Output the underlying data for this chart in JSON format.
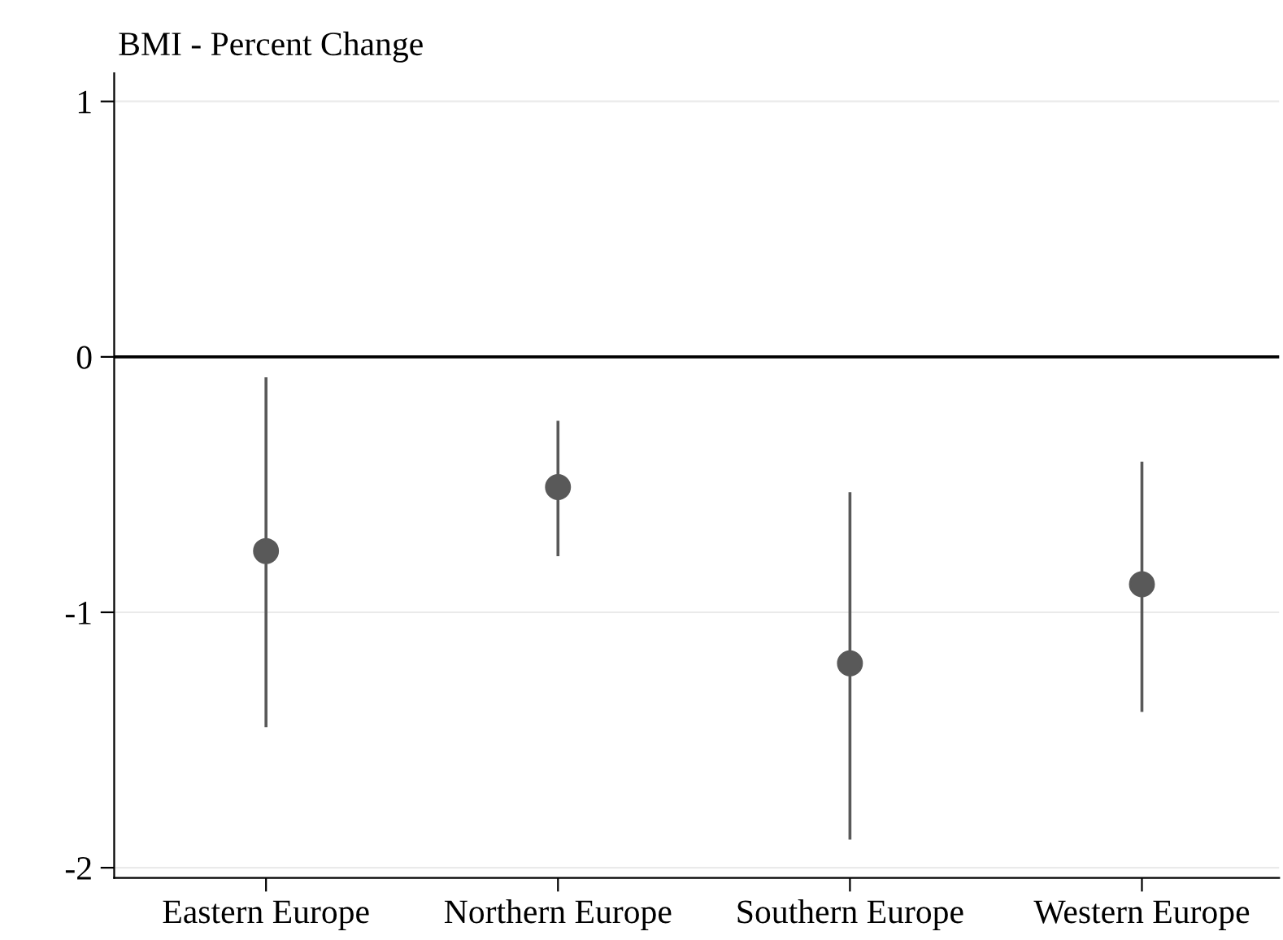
{
  "chart_data": {
    "type": "scatter",
    "ylabel": "BMI - Percent Change",
    "categories": [
      "Eastern Europe",
      "Northern Europe",
      "Southern Europe",
      "Western Europe"
    ],
    "series": [
      {
        "color": "#595959",
        "values": [
          -0.76,
          -0.51,
          -1.2,
          -0.89
        ],
        "errors": [
          [
            -1.45,
            -0.08
          ],
          [
            -0.78,
            -0.25
          ],
          [
            -1.89,
            -0.53
          ],
          [
            -1.39,
            -0.41
          ]
        ]
      }
    ],
    "ylim": [
      -2.04,
      1.11
    ],
    "yticks": [
      -2,
      -1,
      0,
      1
    ],
    "grid": "y",
    "marker": "circle",
    "ref_lines": [
      {
        "axis": "y",
        "value": 0,
        "color": "#000000"
      }
    ]
  }
}
